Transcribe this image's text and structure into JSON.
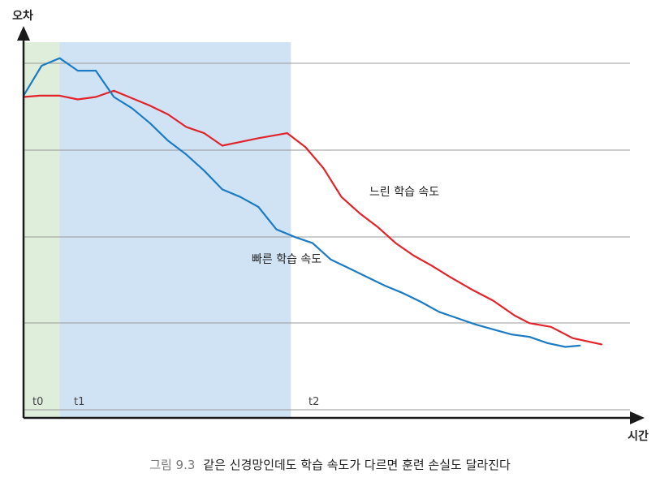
{
  "chart_data": {
    "type": "line",
    "ylabel": "오차",
    "xlabel": "시간",
    "grid": true,
    "phases": [
      {
        "label": "t0",
        "start": 0,
        "end": 1,
        "color": "#dfeddb"
      },
      {
        "label": "t1",
        "start": 1,
        "end": 7.4,
        "color": "#d0e3f5"
      },
      {
        "label": "t2",
        "start": 7.4,
        "end": null,
        "color": ""
      }
    ],
    "series": [
      {
        "name": "느린 학습 속도",
        "color": "#e3232a",
        "points": [
          [
            0,
            7.55
          ],
          [
            0.45,
            7.6
          ],
          [
            1,
            7.6
          ],
          [
            1.5,
            7.45
          ],
          [
            2,
            7.55
          ],
          [
            2.5,
            7.8
          ],
          [
            3,
            7.5
          ],
          [
            3.5,
            7.2
          ],
          [
            4,
            6.85
          ],
          [
            4.5,
            6.35
          ],
          [
            5,
            6.1
          ],
          [
            5.5,
            5.6
          ],
          [
            6,
            5.75
          ],
          [
            6.5,
            5.9
          ],
          [
            7.3,
            6.1
          ],
          [
            7.8,
            5.55
          ],
          [
            8.3,
            4.7
          ],
          [
            8.8,
            3.55
          ],
          [
            9.3,
            2.9
          ],
          [
            9.8,
            2.35
          ],
          [
            10.3,
            1.7
          ],
          [
            10.8,
            1.2
          ],
          [
            11.3,
            0.8
          ],
          [
            11.8,
            0.35
          ],
          [
            12.4,
            -0.15
          ],
          [
            13,
            -0.6
          ],
          [
            13.6,
            -1.2
          ],
          [
            14,
            -1.5
          ],
          [
            14.6,
            -1.65
          ],
          [
            15.2,
            -2.1
          ],
          [
            16,
            -2.35
          ]
        ]
      },
      {
        "name": "빠른 학습 속도",
        "color": "#1b7cc4",
        "points": [
          [
            0,
            7.6
          ],
          [
            0.5,
            8.8
          ],
          [
            1,
            9.1
          ],
          [
            1.5,
            8.6
          ],
          [
            2,
            8.6
          ],
          [
            2.5,
            7.55
          ],
          [
            3,
            7.1
          ],
          [
            3.5,
            6.5
          ],
          [
            4,
            5.8
          ],
          [
            4.5,
            5.25
          ],
          [
            5,
            4.6
          ],
          [
            5.5,
            3.85
          ],
          [
            6,
            3.55
          ],
          [
            6.5,
            3.15
          ],
          [
            7,
            2.25
          ],
          [
            7.5,
            1.95
          ],
          [
            8,
            1.7
          ],
          [
            8.5,
            1.05
          ],
          [
            9,
            0.7
          ],
          [
            9.5,
            0.35
          ],
          [
            10,
            0
          ],
          [
            10.5,
            -0.3
          ],
          [
            11,
            -0.65
          ],
          [
            11.5,
            -1.05
          ],
          [
            12,
            -1.3
          ],
          [
            12.5,
            -1.55
          ],
          [
            13,
            -1.75
          ],
          [
            13.5,
            -1.95
          ],
          [
            14,
            -2.05
          ],
          [
            14.5,
            -2.3
          ],
          [
            15,
            -2.45
          ],
          [
            15.4,
            -2.4
          ]
        ]
      }
    ],
    "annotations": [
      {
        "text": "느린 학습 속도",
        "series": 0
      },
      {
        "text": "빠른 학습 속도",
        "series": 1
      }
    ]
  },
  "caption": {
    "figure_number": "그림 9.3",
    "text": "같은 신경망인데도 학습 속도가 다르면 훈련 손실도 달라진다"
  }
}
